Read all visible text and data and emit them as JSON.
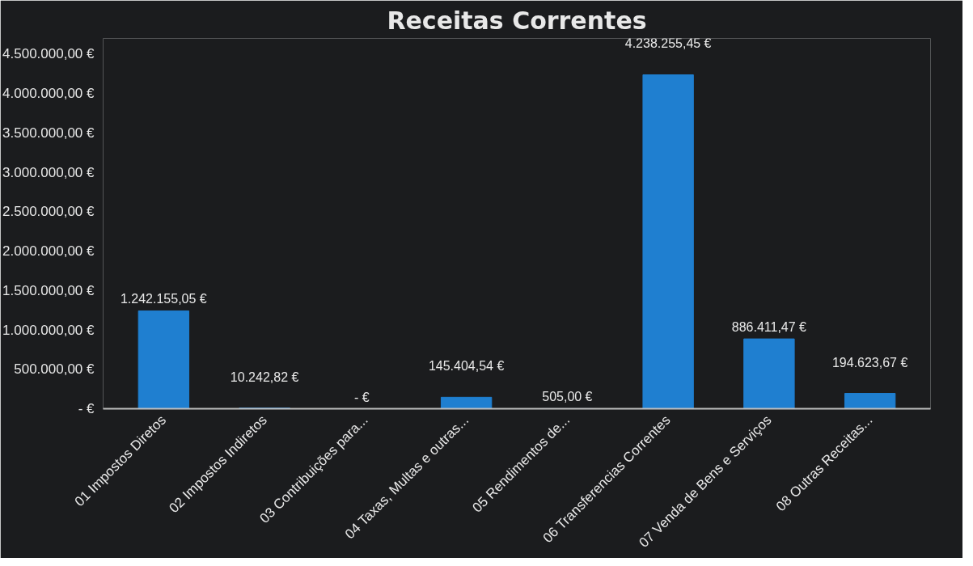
{
  "chart_data": {
    "type": "bar",
    "title": "Receitas Correntes",
    "categories": [
      "01 Impostos Diretos",
      "02 Impostos Indiretos",
      "03 Contribuições para...",
      "04 Taxas, Multas e outras...",
      "05 Rendimentos de...",
      "06 Transferencias Correntes",
      "07 Venda de Bens e Serviços",
      "08 Outras Receitas..."
    ],
    "values": [
      1242155.05,
      10242.82,
      0,
      145404.54,
      505,
      4238255.45,
      886411.47,
      194623.67
    ],
    "value_labels": [
      "1.242.155,05 €",
      "10.242,82 €",
      "-   €",
      "145.404,54 €",
      "505,00 €",
      "4.238.255,45 €",
      "886.411,47 €",
      "194.623,67 €"
    ],
    "color": "#1f7fd0",
    "ylim": [
      0,
      4700000
    ],
    "yticks": [
      {
        "value": 0,
        "label": "- €"
      },
      {
        "value": 500000,
        "label": "500.000,00 €"
      },
      {
        "value": 1000000,
        "label": "1.000.000,00 €"
      },
      {
        "value": 1500000,
        "label": "1.500.000,00 €"
      },
      {
        "value": 2000000,
        "label": "2.000.000,00 €"
      },
      {
        "value": 2500000,
        "label": "2.500.000,00 €"
      },
      {
        "value": 3000000,
        "label": "3.000.000,00 €"
      },
      {
        "value": 3500000,
        "label": "3.500.000,00 €"
      },
      {
        "value": 4000000,
        "label": "4.000.000,00 €"
      },
      {
        "value": 4500000,
        "label": "4.500.000,00 €"
      }
    ],
    "grid": false
  }
}
